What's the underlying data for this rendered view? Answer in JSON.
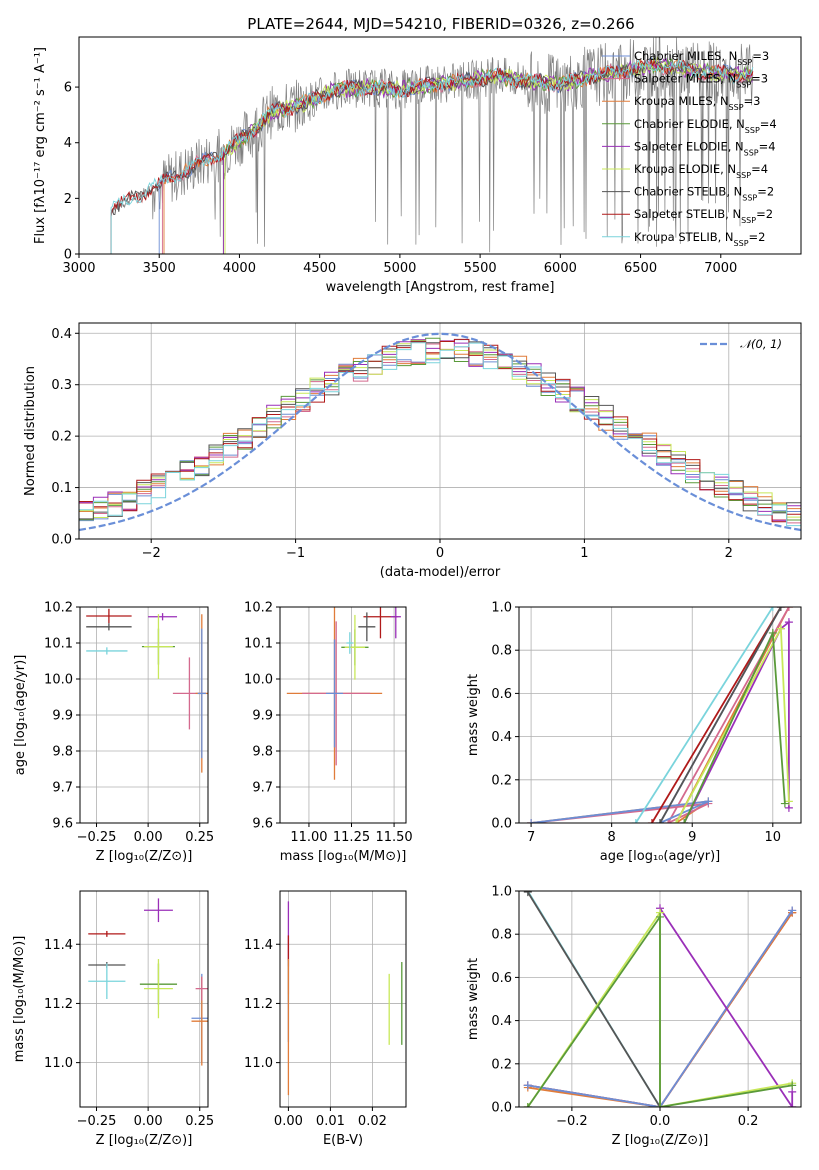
{
  "title": "PLATE=2644, MJD=54210, FIBERID=0326, z=0.266",
  "chart_data": [
    {
      "id": "spectrum",
      "type": "line",
      "xlabel": "wavelength [Angstrom, rest frame]",
      "ylabel": "Flux [fλ10⁻¹⁷ erg cm⁻² s⁻¹ A⁻¹]",
      "xlim": [
        3000,
        7500
      ],
      "ylim": [
        0,
        7.8
      ],
      "xticks": [
        3000,
        3500,
        4000,
        4500,
        5000,
        5500,
        6000,
        6500,
        7000
      ],
      "yticks": [
        0,
        2,
        4,
        6
      ],
      "legend_position": "top-right",
      "series": [
        {
          "name": "Chabrier MILES, N_SSP=3",
          "color": "#6c8ed4",
          "start": 3500
        },
        {
          "name": "Salpeter MILES, N_SSP=3",
          "color": "#d46a8e",
          "start": 3520
        },
        {
          "name": "Kroupa MILES, N_SSP=3",
          "color": "#e07c3a",
          "start": 3530
        },
        {
          "name": "Chabrier ELODIE, N_SSP=4",
          "color": "#5a9a3a",
          "start": 3900
        },
        {
          "name": "Salpeter ELODIE, N_SSP=4",
          "color": "#9a2fb8",
          "start": 3900
        },
        {
          "name": "Kroupa ELODIE, N_SSP=4",
          "color": "#c8e85a",
          "start": 3910
        },
        {
          "name": "Chabrier STELIB, N_SSP=2",
          "color": "#555555",
          "start": 3200
        },
        {
          "name": "Salpeter STELIB, N_SSP=2",
          "color": "#b01a1a",
          "start": 3200
        },
        {
          "name": "Kroupa STELIB, N_SSP=2",
          "color": "#7ad4dc",
          "start": 3200
        }
      ],
      "continuum_points": [
        [
          3200,
          1.6
        ],
        [
          3400,
          2.2
        ],
        [
          3600,
          2.8
        ],
        [
          3800,
          3.4
        ],
        [
          3900,
          3.6
        ],
        [
          4000,
          4.1
        ],
        [
          4100,
          4.5
        ],
        [
          4200,
          5.1
        ],
        [
          4400,
          5.4
        ],
        [
          4600,
          5.9
        ],
        [
          4800,
          6.0
        ],
        [
          5000,
          5.9
        ],
        [
          5200,
          6.1
        ],
        [
          5400,
          6.2
        ],
        [
          5600,
          6.4
        ],
        [
          5800,
          6.2
        ],
        [
          6000,
          6.1
        ],
        [
          6200,
          6.4
        ],
        [
          6400,
          6.6
        ],
        [
          6600,
          6.8
        ],
        [
          6800,
          6.6
        ],
        [
          7000,
          6.5
        ],
        [
          7200,
          6.4
        ]
      ]
    },
    {
      "id": "residuals",
      "type": "step",
      "xlabel": "(data-model)/error",
      "ylabel": "Normed distribution",
      "xlim": [
        -2.5,
        2.5
      ],
      "ylim": [
        0,
        0.42
      ],
      "xticks": [
        -2,
        -1,
        0,
        1,
        2
      ],
      "yticks": [
        0,
        0.1,
        0.2,
        0.3,
        0.4
      ],
      "xtick_labels": [
        "−2",
        "−1",
        "0",
        "1",
        "2"
      ],
      "legend": "𝒩(0, 1)",
      "legend_position": "top-right",
      "gaussian_color": "#6a8fd8"
    },
    {
      "id": "age_vs_Z",
      "type": "errorbar",
      "xlabel": "Z [log₁₀(Z/Z⊙)]",
      "ylabel": "age  [log₁₀(age/yr)]",
      "xlim": [
        -0.33,
        0.29
      ],
      "ylim": [
        9.6,
        10.2
      ],
      "xticks": [
        -0.25,
        0.0,
        0.25
      ],
      "yticks": [
        9.6,
        9.7,
        9.8,
        9.9,
        10.0,
        10.1,
        10.2
      ],
      "xtick_labels": [
        "−0.25",
        "0.00",
        "0.25"
      ],
      "points": [
        {
          "x": -0.19,
          "y": 10.175,
          "xerr": 0.11,
          "yerr": 0.02,
          "color": "#b01a1a"
        },
        {
          "x": -0.19,
          "y": 10.145,
          "xerr": 0.11,
          "yerr": 0.01,
          "color": "#555555"
        },
        {
          "x": -0.2,
          "y": 10.078,
          "xerr": 0.1,
          "yerr": 0.01,
          "color": "#7ad4dc"
        },
        {
          "x": 0.07,
          "y": 10.173,
          "xerr": 0.07,
          "yerr": 0.01,
          "color": "#9a2fb8"
        },
        {
          "x": 0.05,
          "y": 10.09,
          "xerr": 0.08,
          "yerr": 0.05,
          "color": "#5a9a3a"
        },
        {
          "x": 0.05,
          "y": 10.09,
          "xerr": 0.07,
          "yerr": 0.09,
          "color": "#c8e85a"
        },
        {
          "x": 0.2,
          "y": 9.96,
          "xerr": 0.08,
          "yerr": 0.1,
          "color": "#d46a8e"
        },
        {
          "x": 0.26,
          "y": 9.96,
          "xerr": 0.03,
          "yerr": 0.22,
          "color": "#e07c3a"
        },
        {
          "x": 0.26,
          "y": 9.96,
          "xerr": 0.02,
          "yerr": 0.18,
          "color": "#6c8ed4"
        }
      ]
    },
    {
      "id": "age_vs_mass",
      "type": "errorbar",
      "xlabel": "mass [log₁₀(M/M⊙)]",
      "ylabel": "",
      "xlim": [
        10.83,
        11.57
      ],
      "ylim": [
        9.6,
        10.2
      ],
      "xticks": [
        11.0,
        11.25,
        11.5
      ],
      "yticks": [
        9.6,
        9.7,
        9.8,
        9.9,
        10.0,
        10.1,
        10.2
      ],
      "xtick_labels": [
        "11.00",
        "11.25",
        "11.50"
      ],
      "points": [
        {
          "x": 11.42,
          "y": 10.173,
          "xerr": 0.1,
          "yerr": 0.06,
          "color": "#b01a1a"
        },
        {
          "x": 11.34,
          "y": 10.145,
          "xerr": 0.05,
          "yerr": 0.04,
          "color": "#555555"
        },
        {
          "x": 11.27,
          "y": 10.088,
          "xerr": 0.08,
          "yerr": 0.05,
          "color": "#5a9a3a"
        },
        {
          "x": 11.27,
          "y": 10.088,
          "xerr": 0.06,
          "yerr": 0.09,
          "color": "#c8e85a"
        },
        {
          "x": 11.51,
          "y": 10.173,
          "xerr": 0.03,
          "yerr": 0.06,
          "color": "#9a2fb8"
        },
        {
          "x": 11.15,
          "y": 9.96,
          "xerr": 0.28,
          "yerr": 0.24,
          "color": "#e07c3a"
        },
        {
          "x": 11.16,
          "y": 9.96,
          "xerr": 0.2,
          "yerr": 0.2,
          "color": "#d46a8e"
        },
        {
          "x": 11.15,
          "y": 9.96,
          "xerr": 0.05,
          "yerr": 0.15,
          "color": "#6c8ed4"
        },
        {
          "x": 11.24,
          "y": 10.1,
          "xerr": 0.02,
          "yerr": 0.03,
          "color": "#7ad4dc"
        }
      ]
    },
    {
      "id": "weight_vs_age",
      "type": "line",
      "xlabel": "age  [log₁₀(age/yr)]",
      "ylabel": "mass weight",
      "xlim": [
        6.85,
        10.35
      ],
      "ylim": [
        0,
        1.0
      ],
      "xticks": [
        7,
        8,
        9,
        10
      ],
      "yticks": [
        0,
        0.2,
        0.4,
        0.6,
        0.8,
        1.0
      ],
      "xtick_labels": [
        "7",
        "8",
        "9",
        "10"
      ],
      "series": [
        {
          "color": "#e07c3a",
          "points": [
            [
              7.0,
              0.0
            ],
            [
              9.2,
              0.1
            ],
            [
              8.8,
              0.0
            ],
            [
              10.2,
              1.0
            ]
          ]
        },
        {
          "color": "#d46a8e",
          "points": [
            [
              7.0,
              0.0
            ],
            [
              9.2,
              0.09
            ],
            [
              8.7,
              0.0
            ],
            [
              10.2,
              1.0
            ]
          ]
        },
        {
          "color": "#6c8ed4",
          "points": [
            [
              7.0,
              0.0
            ],
            [
              9.2,
              0.1
            ],
            [
              8.6,
              0.0
            ],
            [
              10.1,
              1.0
            ]
          ]
        },
        {
          "color": "#b01a1a",
          "points": [
            [
              8.5,
              0.0
            ],
            [
              10.1,
              1.0
            ]
          ]
        },
        {
          "color": "#555555",
          "points": [
            [
              8.6,
              0.0
            ],
            [
              10.1,
              1.0
            ]
          ]
        },
        {
          "color": "#7ad4dc",
          "points": [
            [
              8.3,
              0.0
            ],
            [
              10.0,
              1.0
            ]
          ]
        },
        {
          "color": "#9a2fb8",
          "points": [
            [
              8.9,
              0.0
            ],
            [
              10.1,
              0.9
            ],
            [
              10.2,
              0.93
            ],
            [
              10.2,
              0.07
            ]
          ]
        },
        {
          "color": "#c8e85a",
          "points": [
            [
              8.8,
              0.0
            ],
            [
              10.1,
              0.9
            ],
            [
              10.2,
              0.1
            ]
          ]
        },
        {
          "color": "#5a9a3a",
          "points": [
            [
              8.9,
              0.0
            ],
            [
              10.0,
              0.88
            ],
            [
              10.15,
              0.09
            ]
          ]
        }
      ]
    },
    {
      "id": "mass_vs_Z",
      "type": "errorbar",
      "xlabel": "Z [log₁₀(Z/Z⊙)]",
      "ylabel": "mass [log₁₀(M/M⊙)]",
      "xlim": [
        -0.33,
        0.29
      ],
      "ylim": [
        10.85,
        11.58
      ],
      "xticks": [
        -0.25,
        0.0,
        0.25
      ],
      "yticks": [
        11.0,
        11.2,
        11.4
      ],
      "xtick_labels": [
        "−0.25",
        "0.00",
        "0.25"
      ],
      "points": [
        {
          "x": -0.2,
          "y": 11.435,
          "xerr": 0.09,
          "yerr": 0.01,
          "color": "#b01a1a"
        },
        {
          "x": -0.2,
          "y": 11.33,
          "xerr": 0.09,
          "yerr": 0.01,
          "color": "#555555"
        },
        {
          "x": -0.2,
          "y": 11.275,
          "xerr": 0.09,
          "yerr": 0.06,
          "color": "#7ad4dc"
        },
        {
          "x": 0.05,
          "y": 11.515,
          "xerr": 0.07,
          "yerr": 0.04,
          "color": "#9a2fb8"
        },
        {
          "x": 0.05,
          "y": 11.265,
          "xerr": 0.09,
          "yerr": 0.07,
          "color": "#5a9a3a"
        },
        {
          "x": 0.05,
          "y": 11.25,
          "xerr": 0.07,
          "yerr": 0.1,
          "color": "#c8e85a"
        },
        {
          "x": 0.26,
          "y": 11.15,
          "xerr": 0.05,
          "yerr": 0.15,
          "color": "#6c8ed4"
        },
        {
          "x": 0.26,
          "y": 11.14,
          "xerr": 0.05,
          "yerr": 0.15,
          "color": "#e07c3a"
        },
        {
          "x": 0.26,
          "y": 11.25,
          "xerr": 0.03,
          "yerr": 0.04,
          "color": "#d46a8e"
        }
      ]
    },
    {
      "id": "mass_vs_ebv",
      "type": "errorbar",
      "xlabel": "E(B-V)",
      "ylabel": "",
      "xlim": [
        -0.002,
        0.028
      ],
      "ylim": [
        10.85,
        11.58
      ],
      "xticks": [
        0.0,
        0.01,
        0.02
      ],
      "yticks": [
        11.0,
        11.2,
        11.4
      ],
      "xtick_labels": [
        "0.00",
        "0.01",
        "0.02"
      ],
      "points": [
        {
          "x": 0.0,
          "y": 11.435,
          "xerr": 0,
          "yerr": 0.11,
          "color": "#9a2fb8"
        },
        {
          "x": 0.0,
          "y": 11.33,
          "xerr": 0,
          "yerr": 0.1,
          "color": "#b01a1a"
        },
        {
          "x": 0.0,
          "y": 11.275,
          "xerr": 0,
          "yerr": 0.07,
          "color": "#7ad4dc"
        },
        {
          "x": 0.0,
          "y": 11.15,
          "xerr": 0,
          "yerr": 0.08,
          "color": "#6c8ed4"
        },
        {
          "x": 0.0,
          "y": 11.12,
          "xerr": 0,
          "yerr": 0.23,
          "color": "#e07c3a"
        },
        {
          "x": 0.024,
          "y": 11.18,
          "xerr": 0,
          "yerr": 0.12,
          "color": "#c8e85a"
        },
        {
          "x": 0.027,
          "y": 11.2,
          "xerr": 0,
          "yerr": 0.14,
          "color": "#5a9a3a"
        }
      ]
    },
    {
      "id": "weight_vs_Z",
      "type": "line",
      "xlabel": "Z [log₁₀(Z/Z⊙)]",
      "ylabel": "mass weight",
      "xlim": [
        -0.32,
        0.32
      ],
      "ylim": [
        0,
        1.0
      ],
      "xticks": [
        -0.2,
        0.0,
        0.2
      ],
      "yticks": [
        0,
        0.2,
        0.4,
        0.6,
        0.8,
        1.0
      ],
      "xtick_labels": [
        "−0.2",
        "0.0",
        "0.2"
      ],
      "series": [
        {
          "color": "#7ad4dc",
          "points": [
            [
              -0.3,
              1.0
            ],
            [
              0.0,
              0.0
            ]
          ]
        },
        {
          "color": "#555555",
          "points": [
            [
              -0.3,
              0.995
            ],
            [
              0.0,
              0.0
            ]
          ]
        },
        {
          "color": "#b01a1a",
          "points": [
            [
              -0.3,
              0.1
            ],
            [
              0.0,
              0.0
            ],
            [
              0.3,
              0.9
            ]
          ]
        },
        {
          "color": "#e07c3a",
          "points": [
            [
              -0.3,
              0.09
            ],
            [
              0.0,
              0.0
            ],
            [
              0.3,
              0.9
            ]
          ]
        },
        {
          "color": "#d46a8e",
          "points": [
            [
              -0.3,
              0.1
            ],
            [
              0.0,
              0.0
            ],
            [
              0.3,
              0.91
            ]
          ]
        },
        {
          "color": "#6c8ed4",
          "points": [
            [
              -0.3,
              0.1
            ],
            [
              0.0,
              0.0
            ],
            [
              0.3,
              0.91
            ]
          ]
        },
        {
          "color": "#9a2fb8",
          "points": [
            [
              0.0,
              0.92
            ],
            [
              0.3,
              0.0
            ]
          ]
        },
        {
          "color": "#9a2fb8",
          "points": [
            [
              0.3,
              0.07
            ],
            [
              0.3,
              0.0
            ]
          ]
        },
        {
          "color": "#c8e85a",
          "points": [
            [
              -0.3,
              0.0
            ],
            [
              0.0,
              0.9
            ],
            [
              0.0,
              0.0
            ],
            [
              0.3,
              0.11
            ]
          ]
        },
        {
          "color": "#5a9a3a",
          "points": [
            [
              -0.3,
              0.0
            ],
            [
              0.0,
              0.88
            ],
            [
              0.0,
              0.0
            ],
            [
              0.3,
              0.1
            ]
          ]
        }
      ]
    }
  ]
}
